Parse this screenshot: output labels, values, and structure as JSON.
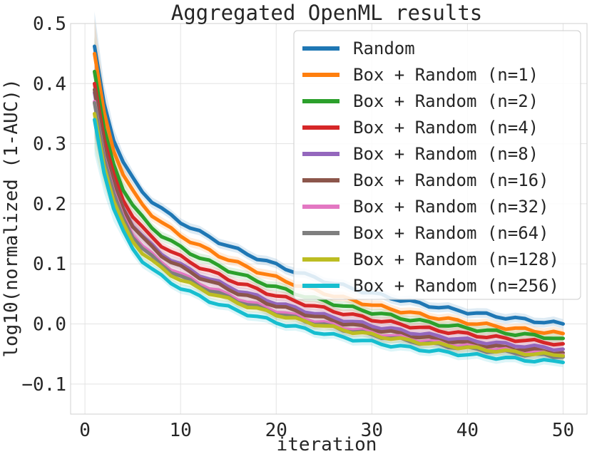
{
  "chart_data": {
    "type": "line",
    "title": "Aggregated OpenML results",
    "xlabel": "iteration",
    "ylabel": "log10(normalized (1-AUC))",
    "xlim": [
      -1.5,
      52.5
    ],
    "ylim": [
      -0.15,
      0.5
    ],
    "xticks": [
      0,
      10,
      20,
      30,
      40,
      50
    ],
    "xtick_labels": [
      "0",
      "10",
      "20",
      "30",
      "40",
      "50"
    ],
    "yticks": [
      -0.1,
      0.0,
      0.1,
      0.2,
      0.3,
      0.4,
      0.5
    ],
    "ytick_labels": [
      "−0.1",
      "0.0",
      "0.1",
      "0.2",
      "0.3",
      "0.4",
      "0.5"
    ],
    "grid": true,
    "legend_position": "top-right",
    "shaded_band": true,
    "series": [
      {
        "name": "Random",
        "color": "#1f77b4",
        "start": 0.462,
        "end": 0.0,
        "offset": 0.03
      },
      {
        "name": "Box + Random (n=1)",
        "color": "#ff7f0e",
        "start": 0.45,
        "end": -0.016,
        "offset": 0.016
      },
      {
        "name": "Box + Random (n=2)",
        "color": "#2ca02c",
        "start": 0.42,
        "end": -0.024,
        "offset": 0.008
      },
      {
        "name": "Box + Random (n=4)",
        "color": "#d62728",
        "start": 0.4,
        "end": -0.033,
        "offset": 0.002
      },
      {
        "name": "Box + Random (n=8)",
        "color": "#9467bd",
        "start": 0.385,
        "end": -0.042,
        "offset": -0.002
      },
      {
        "name": "Box + Random (n=16)",
        "color": "#8c564b",
        "start": 0.39,
        "end": -0.048,
        "offset": -0.004
      },
      {
        "name": "Box + Random (n=32)",
        "color": "#e377c2",
        "start": 0.37,
        "end": -0.052,
        "offset": -0.008
      },
      {
        "name": "Box + Random (n=64)",
        "color": "#7f7f7f",
        "start": 0.368,
        "end": -0.055,
        "offset": -0.01
      },
      {
        "name": "Box + Random (n=128)",
        "color": "#bcbd22",
        "start": 0.35,
        "end": -0.053,
        "offset": -0.011
      },
      {
        "name": "Box + Random (n=256)",
        "color": "#17becf",
        "start": 0.34,
        "end": -0.064,
        "offset": -0.016
      }
    ]
  }
}
